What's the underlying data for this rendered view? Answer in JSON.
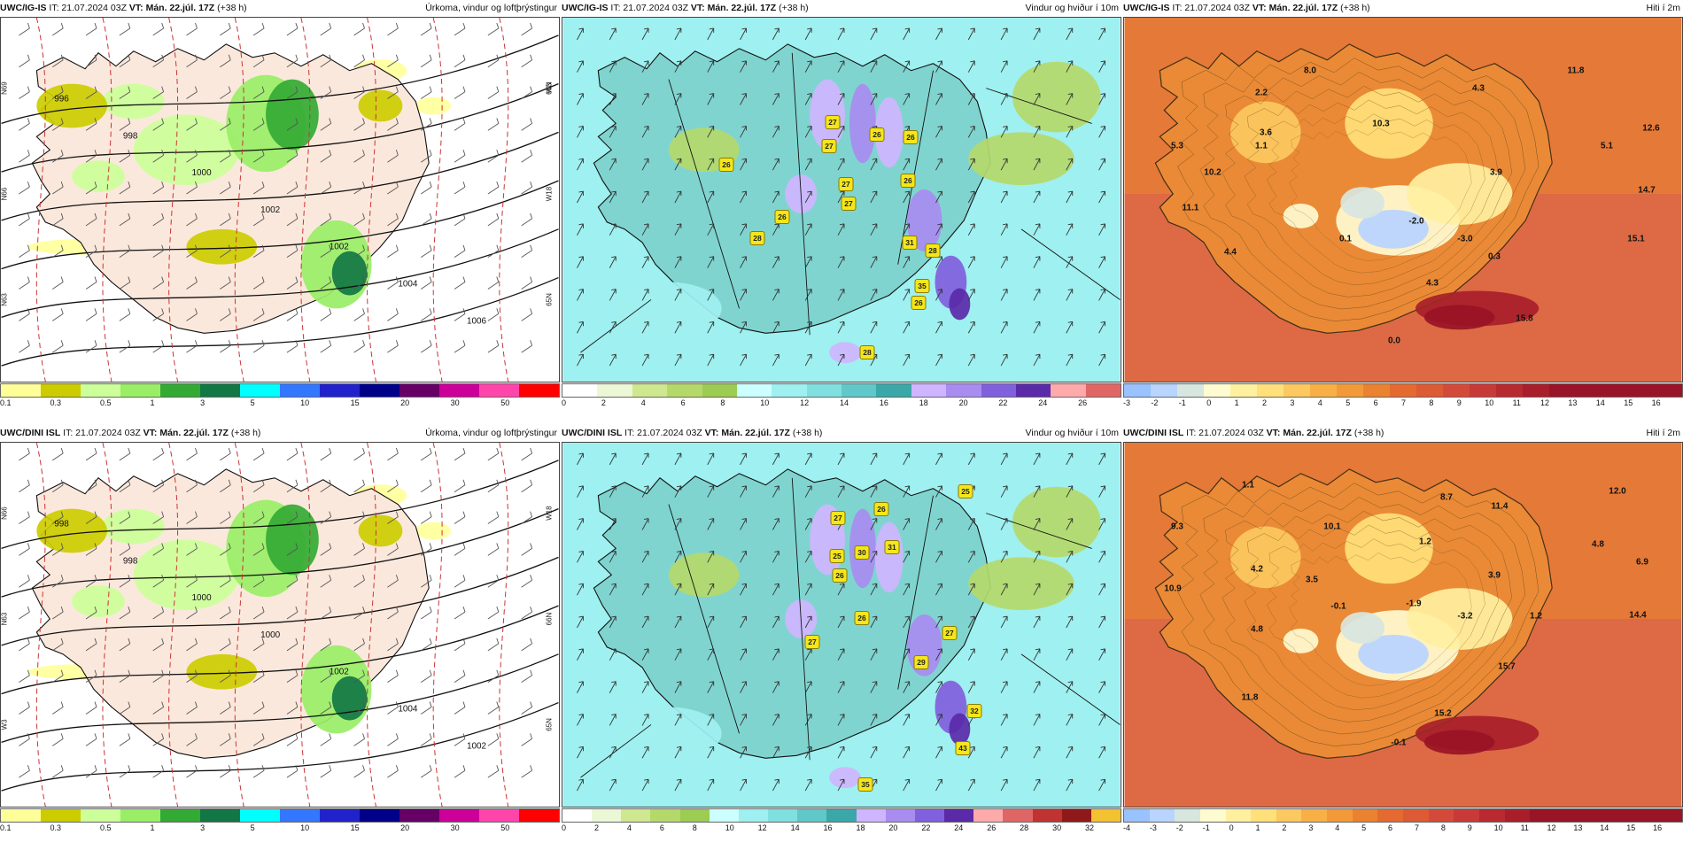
{
  "colors": {
    "precip": [
      "#ffff99",
      "#cccc00",
      "#ccff99",
      "#99ee66",
      "#33aa33",
      "#117744",
      "#00ffff",
      "#3377ff",
      "#2222cc",
      "#000088",
      "#660066",
      "#cc0099",
      "#ff44aa",
      "#ff0000"
    ],
    "wind": [
      "#ffffff",
      "#ecf7d6",
      "#cfe88f",
      "#b4d96a",
      "#9ccc52",
      "#ccffff",
      "#9ff0f0",
      "#80e0e0",
      "#60c8c8",
      "#3aa8a8",
      "#cfb5ff",
      "#a88cf0",
      "#8060dd",
      "#5a2aa8",
      "#ffaaaa",
      "#e06666",
      "#c03333",
      "#901818",
      "#f2c230"
    ],
    "temp": [
      "#99c2ff",
      "#b8d4ff",
      "#d8e6e0",
      "#fffbd0",
      "#fff0a0",
      "#ffe07a",
      "#fcc860",
      "#f8b046",
      "#f29a3a",
      "#ea8230",
      "#e46a30",
      "#dc5a34",
      "#d44a38",
      "#c83a38",
      "#b82a30",
      "#a81e2a",
      "#981426"
    ]
  },
  "panels": [
    {
      "id": "ig-precip",
      "model": "UWC/IG-IS",
      "it": " IT: 21.07.2024 03Z ",
      "vt_label": "VT: Mán. 22.júl. 17Z",
      "lead": " (+38 h)",
      "title": "Úrkoma, vindur og loftþrýstingur",
      "kind": "precip",
      "ticks": [
        "0.1",
        "0.3",
        "0.5",
        "1",
        "3",
        "5",
        "10",
        "15",
        "20",
        "30",
        "50"
      ],
      "isobars": [
        "996",
        "998",
        "1000",
        "1002",
        "1002",
        "1004",
        "1006"
      ],
      "side_labels": [
        "N69",
        "N66",
        "N63",
        "W3",
        "W18",
        "65N",
        "66N"
      ]
    },
    {
      "id": "ig-wind",
      "model": "UWC/IG-IS",
      "it": " IT: 21.07.2024 03Z ",
      "vt_label": "VT: Mán. 22.júl. 17Z",
      "lead": " (+38 h)",
      "title": "Vindur og hviður í 10m",
      "kind": "wind",
      "ticks": [
        "0",
        "2",
        "4",
        "6",
        "8",
        "10",
        "12",
        "14",
        "16",
        "18",
        "20",
        "22",
        "24",
        "26"
      ],
      "gusts": [
        "27",
        "26",
        "27",
        "26",
        "27",
        "26",
        "26",
        "27",
        "26",
        "28",
        "28",
        "31",
        "35",
        "26",
        "28"
      ]
    },
    {
      "id": "ig-temp",
      "model": "UWC/IG-IS",
      "it": " IT: 21.07.2024 03Z ",
      "vt_label": "VT: Mán. 22.júl. 17Z",
      "lead": " (+38 h)",
      "title": "Hiti í 2m",
      "kind": "temp",
      "ticks": [
        "-3",
        "-2",
        "-1",
        "0",
        "1",
        "2",
        "3",
        "4",
        "5",
        "6",
        "7",
        "8",
        "9",
        "10",
        "11",
        "12",
        "13",
        "14",
        "15",
        "16"
      ],
      "values": [
        "8.0",
        "11.8",
        "2.2",
        "4.3",
        "10.3",
        "12.6",
        "3.6",
        "5.3",
        "1.1",
        "5.1",
        "10.2",
        "3.9",
        "14.7",
        "11.1",
        "0.1",
        "-2.0",
        "-3.0",
        "15.1",
        "4.4",
        "0.3",
        "4.3",
        "15.8",
        "0.0"
      ]
    },
    {
      "id": "dini-precip",
      "model": "UWC/DINI ISL",
      "it": " IT: 21.07.2024 03Z ",
      "vt_label": "VT: Mán. 22.júl. 17Z",
      "lead": " (+38 h)",
      "title": "Úrkoma, vindur og loftþrýstingur",
      "kind": "precip",
      "ticks": [
        "0.1",
        "0.3",
        "0.5",
        "1",
        "3",
        "5",
        "10",
        "15",
        "20",
        "30",
        "50"
      ],
      "isobars": [
        "998",
        "998",
        "1000",
        "1000",
        "1002",
        "1004",
        "1002"
      ],
      "side_labels": [
        "N66",
        "N63",
        "W3",
        "W18",
        "66N",
        "65N"
      ]
    },
    {
      "id": "dini-wind",
      "model": "UWC/DINI ISL",
      "it": " IT: 21.07.2024 03Z ",
      "vt_label": "VT: Mán. 22.júl. 17Z",
      "lead": " (+38 h)",
      "title": "Vindur og hviður í 10m",
      "kind": "wind",
      "ticks": [
        "0",
        "2",
        "4",
        "6",
        "8",
        "10",
        "12",
        "14",
        "16",
        "18",
        "20",
        "22",
        "24",
        "26",
        "28",
        "30",
        "32"
      ],
      "gusts": [
        "25",
        "27",
        "26",
        "25",
        "30",
        "31",
        "26",
        "26",
        "27",
        "27",
        "29",
        "32",
        "43",
        "35"
      ]
    },
    {
      "id": "dini-temp",
      "model": "UWC/DINI ISL",
      "it": " IT: 21.07.2024 03Z ",
      "vt_label": "VT: Mán. 22.júl. 17Z",
      "lead": " (+38 h)",
      "title": "Hiti í 2m",
      "kind": "temp",
      "ticks": [
        "-4",
        "-3",
        "-2",
        "-1",
        "0",
        "1",
        "2",
        "3",
        "4",
        "5",
        "6",
        "7",
        "8",
        "9",
        "10",
        "11",
        "12",
        "13",
        "14",
        "15",
        "16"
      ],
      "values": [
        "1.1",
        "12.0",
        "8.7",
        "11.4",
        "9.3",
        "10.1",
        "4.8",
        "1.2",
        "6.9",
        "4.2",
        "3.5",
        "3.9",
        "10.9",
        "-0.1",
        "-1.9",
        "-3.2",
        "1.2",
        "14.4",
        "4.8",
        "15.7",
        "11.8",
        "15.2",
        "-0.1"
      ]
    }
  ]
}
